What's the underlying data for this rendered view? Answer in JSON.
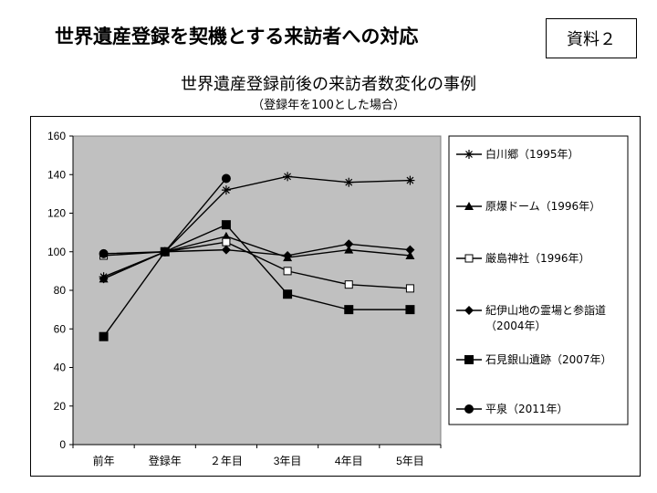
{
  "slide": {
    "title": "世界遺産登録を契機とする来訪者への対応",
    "badge": "資料２"
  },
  "chart_data": {
    "type": "line",
    "title": "世界遺産登録前後の来訪者数変化の事例",
    "subtitle": "（登録年を100とした場合）",
    "categories": [
      "前年",
      "登録年",
      "２年目",
      "3年目",
      "4年目",
      "5年目"
    ],
    "ylim": [
      0,
      160
    ],
    "yticks": [
      0,
      20,
      40,
      60,
      80,
      100,
      120,
      140,
      160
    ],
    "grid": false,
    "plot_background": "#c0c0c0",
    "legend_position": "right",
    "series": [
      {
        "name": "白川郷（1995年）",
        "marker": "asterisk",
        "values": [
          87,
          100,
          132,
          139,
          136,
          137
        ]
      },
      {
        "name": "原爆ドーム（1996年）",
        "marker": "triangle",
        "values": [
          86,
          100,
          108,
          97,
          101,
          98
        ]
      },
      {
        "name": "厳島神社（1996年）",
        "marker": "square-open",
        "values": [
          98,
          100,
          105,
          90,
          83,
          81
        ]
      },
      {
        "name": "紀伊山地の霊場と参詣道（2004年）",
        "label_lines": [
          "紀伊山地の霊場と参詣道",
          "（2004年）"
        ],
        "marker": "diamond",
        "values": [
          86,
          100,
          101,
          98,
          104,
          101
        ]
      },
      {
        "name": "石見銀山遺跡（2007年）",
        "marker": "square",
        "values": [
          56,
          100,
          114,
          78,
          70,
          70
        ]
      },
      {
        "name": "平泉（2011年）",
        "marker": "circle",
        "values": [
          99,
          100,
          138,
          null,
          null,
          null
        ]
      }
    ]
  }
}
